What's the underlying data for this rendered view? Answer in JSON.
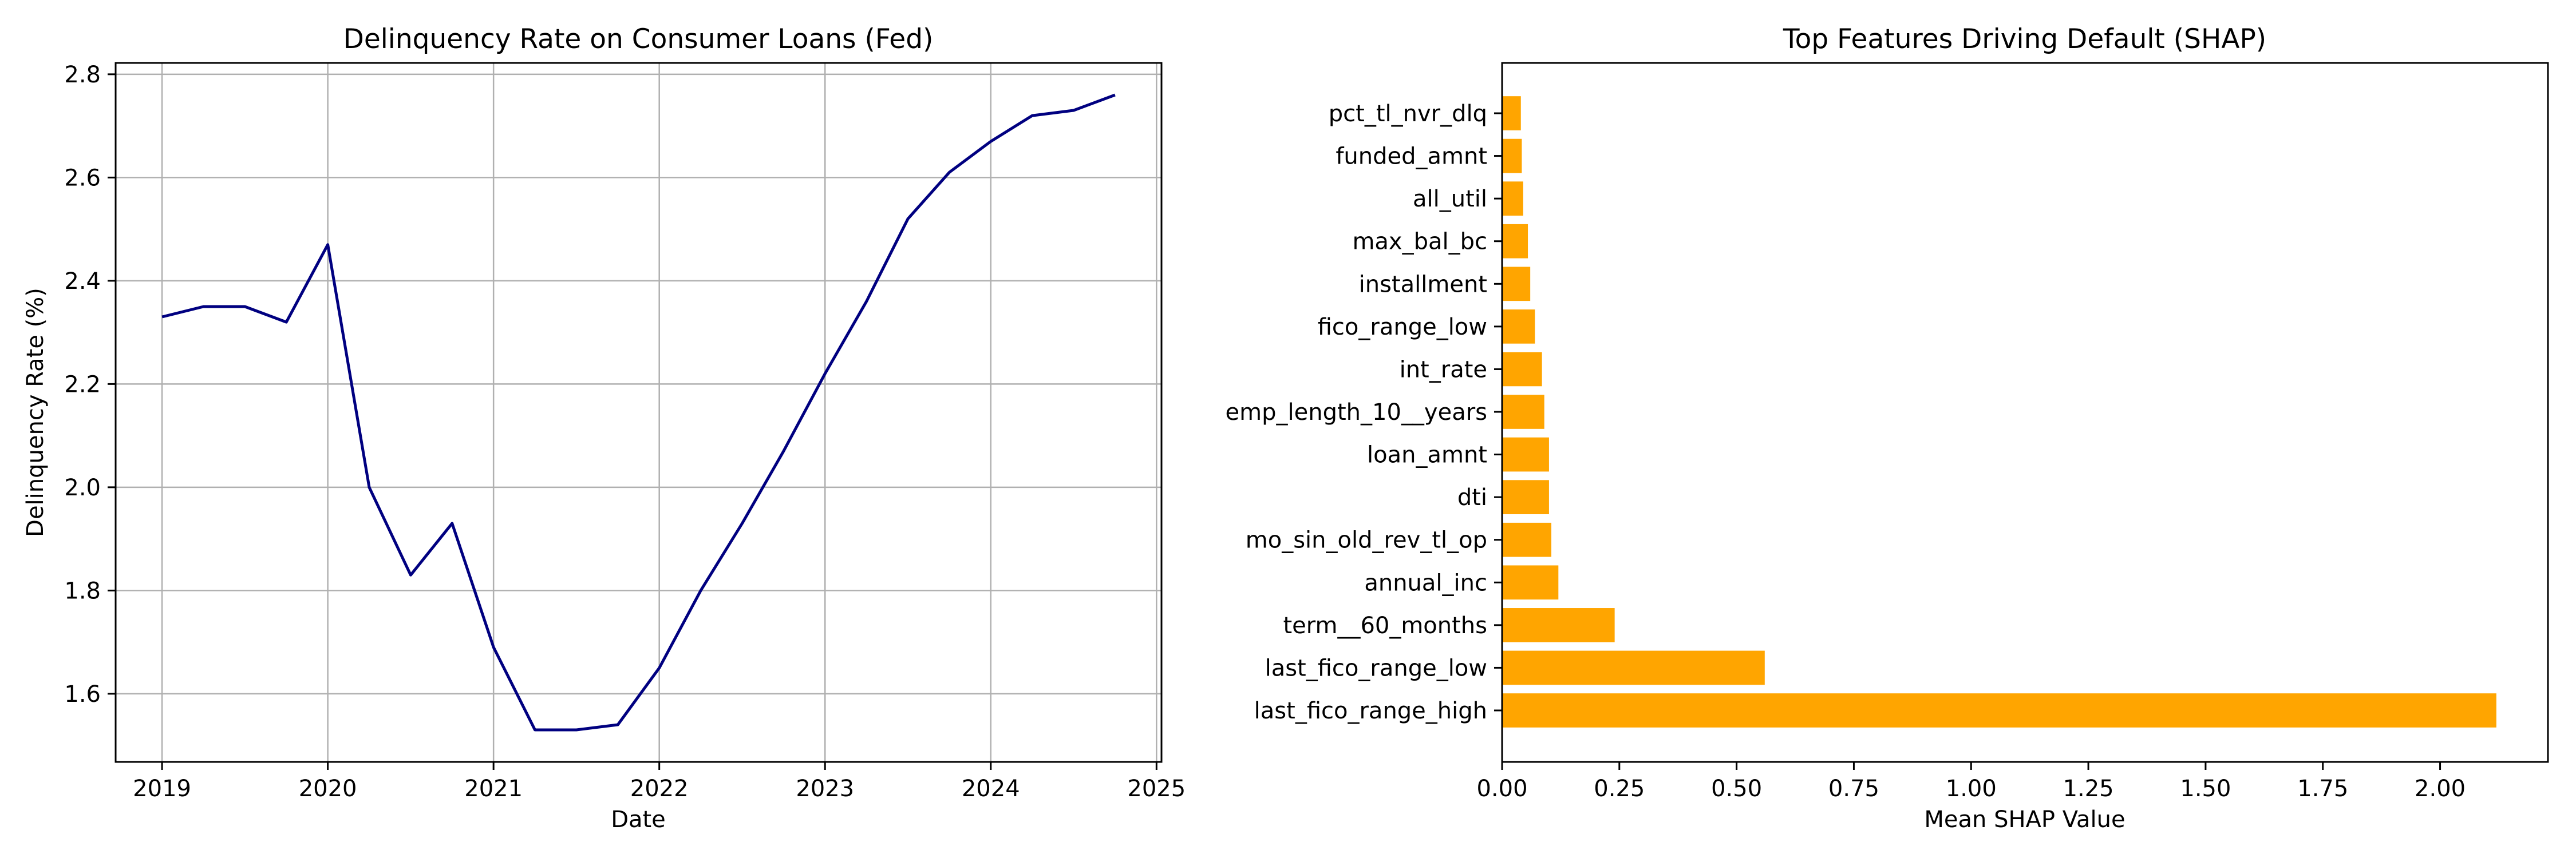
{
  "chart_data": [
    {
      "type": "line",
      "title": "Delinquency Rate on Consumer Loans (Fed)",
      "xlabel": "Date",
      "ylabel": "Delinquency Rate (%)",
      "grid": true,
      "xlim": [
        2018.72,
        2025.03
      ],
      "ylim": [
        1.468,
        2.822
      ],
      "x_ticks": [
        2019,
        2020,
        2021,
        2022,
        2023,
        2024,
        2025
      ],
      "x_tick_labels": [
        "2019",
        "2020",
        "2021",
        "2022",
        "2023",
        "2024",
        "2025"
      ],
      "y_ticks": [
        1.6,
        1.8,
        2.0,
        2.2,
        2.4,
        2.6,
        2.8
      ],
      "y_tick_labels": [
        "1.6",
        "1.8",
        "2.0",
        "2.2",
        "2.4",
        "2.6",
        "2.8"
      ],
      "line_color": "#000080",
      "series": [
        {
          "name": "Delinquency Rate",
          "x": [
            2019.0,
            2019.25,
            2019.5,
            2019.75,
            2020.0,
            2020.25,
            2020.5,
            2020.75,
            2021.0,
            2021.25,
            2021.5,
            2021.75,
            2022.0,
            2022.25,
            2022.5,
            2022.75,
            2023.0,
            2023.25,
            2023.5,
            2023.75,
            2024.0,
            2024.25,
            2024.5,
            2024.75
          ],
          "values": [
            2.33,
            2.35,
            2.35,
            2.32,
            2.47,
            2.0,
            1.83,
            1.93,
            1.69,
            1.53,
            1.53,
            1.54,
            1.65,
            1.8,
            1.93,
            2.07,
            2.22,
            2.36,
            2.52,
            2.61,
            2.67,
            2.72,
            2.73,
            2.76
          ]
        }
      ]
    },
    {
      "type": "bar",
      "orientation": "horizontal",
      "title": "Top Features Driving Default (SHAP)",
      "xlabel": "Mean SHAP Value",
      "ylabel": "",
      "grid": false,
      "xlim": [
        0,
        2.23
      ],
      "x_ticks": [
        0,
        0.25,
        0.5,
        0.75,
        1.0,
        1.25,
        1.5,
        1.75,
        2.0
      ],
      "x_tick_labels": [
        "0.00",
        "0.25",
        "0.50",
        "0.75",
        "1.00",
        "1.25",
        "1.50",
        "1.75",
        "2.00"
      ],
      "bar_color": "#ffa500",
      "categories": [
        "last_fico_range_high",
        "last_fico_range_low",
        "term__60_months",
        "annual_inc",
        "mo_sin_old_rev_tl_op",
        "dti",
        "loan_amnt",
        "emp_length_10__years",
        "int_rate",
        "fico_range_low",
        "installment",
        "max_bal_bc",
        "all_util",
        "funded_amnt",
        "pct_tl_nvr_dlq"
      ],
      "values": [
        2.12,
        0.56,
        0.24,
        0.12,
        0.105,
        0.1,
        0.1,
        0.09,
        0.085,
        0.07,
        0.06,
        0.055,
        0.045,
        0.042,
        0.04
      ]
    }
  ]
}
